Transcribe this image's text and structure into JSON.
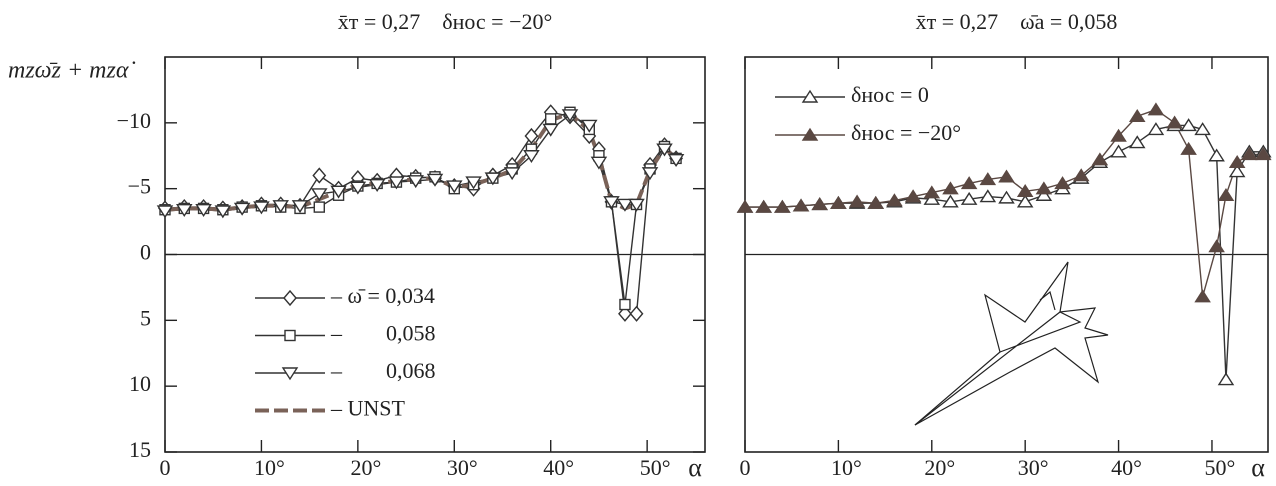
{
  "chart_data": [
    {
      "type": "line",
      "title": "x̄т = 0,27    δнос = −20°",
      "ylabel": "mzω̄z + mzα̇",
      "xlabel": "α",
      "x": [
        0,
        2,
        4,
        6,
        8,
        10,
        12,
        14,
        16,
        18,
        20,
        22,
        24,
        26,
        28,
        30,
        32,
        34,
        36,
        38,
        40,
        42,
        44,
        45,
        46.3,
        47.7,
        48.9,
        50.3,
        51.8,
        53
      ],
      "xlim": [
        0,
        56
      ],
      "xticks": [
        0,
        {
          "value": 10,
          "label": "10°"
        },
        {
          "value": 20,
          "label": "20°"
        },
        {
          "value": 30,
          "label": "30°"
        },
        {
          "value": 40,
          "label": "40°"
        },
        {
          "value": 50,
          "label": "50°"
        }
      ],
      "ylim": [
        15,
        -15
      ],
      "yticks": [
        {
          "value": -10,
          "label": "−10"
        },
        {
          "value": -5,
          "label": "−5"
        },
        0,
        5,
        10,
        15
      ],
      "legend": "lower left",
      "series": [
        {
          "name": "– ω̄ = 0,034",
          "color": "#333333",
          "marker": "diamond",
          "filled": false,
          "values": [
            -3.5,
            -3.6,
            -3.6,
            -3.5,
            -3.6,
            -3.8,
            -3.8,
            -3.7,
            -6.0,
            -5.0,
            -5.8,
            -5.6,
            -6.0,
            -5.9,
            -5.8,
            -5.2,
            -5.0,
            -6.0,
            -6.8,
            -9.0,
            -10.8,
            -10.5,
            -9.0,
            -8.0,
            -4.0,
            4.5,
            4.5,
            -6.8,
            -8.3,
            -7.3
          ]
        },
        {
          "name": "–        0,058",
          "color": "#333333",
          "marker": "square",
          "filled": false,
          "values": [
            -3.4,
            -3.5,
            -3.5,
            -3.4,
            -3.6,
            -3.7,
            -3.6,
            -3.5,
            -3.6,
            -4.5,
            -5.2,
            -5.4,
            -5.5,
            -5.8,
            -5.9,
            -5.0,
            -5.3,
            -5.8,
            -6.5,
            -8.0,
            -10.3,
            -10.8,
            -9.5,
            -7.5,
            -4.0,
            3.8,
            -3.8,
            -6.5,
            -8.2,
            -7.3
          ]
        },
        {
          "name": "–        0,068",
          "color": "#333333",
          "marker": "triangle-down",
          "filled": false,
          "values": [
            -3.3,
            -3.4,
            -3.4,
            -3.3,
            -3.5,
            -3.6,
            -3.7,
            -3.7,
            -4.6,
            -4.8,
            -5.1,
            -5.3,
            -5.5,
            -5.6,
            -5.7,
            -5.2,
            -5.5,
            -5.8,
            -6.2,
            -7.5,
            -9.5,
            -10.6,
            -9.8,
            -7.0,
            -4.0,
            -3.8,
            -3.8,
            -6.2,
            -8.0,
            -7.2
          ]
        },
        {
          "name": "– UNST",
          "color": "#7a6258",
          "marker": "none",
          "filled": false,
          "dashed": true,
          "values": [
            -3.4,
            -3.5,
            -3.5,
            -3.4,
            -3.6,
            -3.7,
            -3.7,
            -3.6,
            -4.2,
            -4.8,
            -5.3,
            -5.4,
            -5.6,
            -5.7,
            -5.8,
            -5.1,
            -5.3,
            -5.8,
            -6.4,
            -8.0,
            -10.2,
            -10.7,
            -9.4,
            -7.4,
            -4.0,
            -3.5,
            -3.8,
            -6.4,
            -8.1,
            -7.3
          ]
        }
      ]
    },
    {
      "type": "line",
      "title": "x̄т = 0,27    ω̄a = 0,058",
      "xlabel": "α",
      "x": [
        0,
        2,
        4,
        6,
        8,
        10,
        12,
        14,
        16,
        18,
        20,
        22,
        24,
        26,
        28,
        30,
        32,
        34,
        36,
        38,
        40,
        42,
        44,
        46,
        47.5,
        49,
        50.5,
        51.5,
        52.7,
        54,
        55.5
      ],
      "xlim": [
        0,
        56
      ],
      "xticks": [
        0,
        {
          "value": 10,
          "label": "10°"
        },
        {
          "value": 20,
          "label": "20°"
        },
        {
          "value": 30,
          "label": "30°"
        },
        {
          "value": 40,
          "label": "40°"
        },
        {
          "value": 50,
          "label": "50°"
        }
      ],
      "ylim": [
        15,
        -15
      ],
      "legend": "upper left",
      "series": [
        {
          "name": "δнос = 0",
          "color": "#333333",
          "marker": "triangle",
          "filled": false,
          "values": [
            -3.6,
            -3.6,
            -3.6,
            -3.7,
            -3.8,
            -3.9,
            -3.9,
            -3.9,
            -4.0,
            -4.3,
            -4.2,
            -4.0,
            -4.2,
            -4.4,
            -4.3,
            -4.0,
            -4.5,
            -5.0,
            -5.8,
            -7.0,
            -7.8,
            -8.5,
            -9.5,
            -9.8,
            -9.8,
            -9.5,
            -7.5,
            9.5,
            -6.3,
            -7.8,
            -7.8
          ]
        },
        {
          "name": "δнос = −20°",
          "color": "#5a4842",
          "marker": "triangle",
          "filled": true,
          "values": [
            -3.6,
            -3.6,
            -3.6,
            -3.7,
            -3.8,
            -3.9,
            -4.0,
            -3.9,
            -4.1,
            -4.4,
            -4.7,
            -5.0,
            -5.4,
            -5.7,
            -5.9,
            -4.8,
            -5.0,
            -5.4,
            -6.0,
            -7.2,
            -9.0,
            -10.5,
            -11.0,
            -10.0,
            -8.0,
            3.2,
            -0.6,
            -4.5,
            -7.0,
            -7.6,
            -7.6
          ]
        }
      ]
    }
  ]
}
